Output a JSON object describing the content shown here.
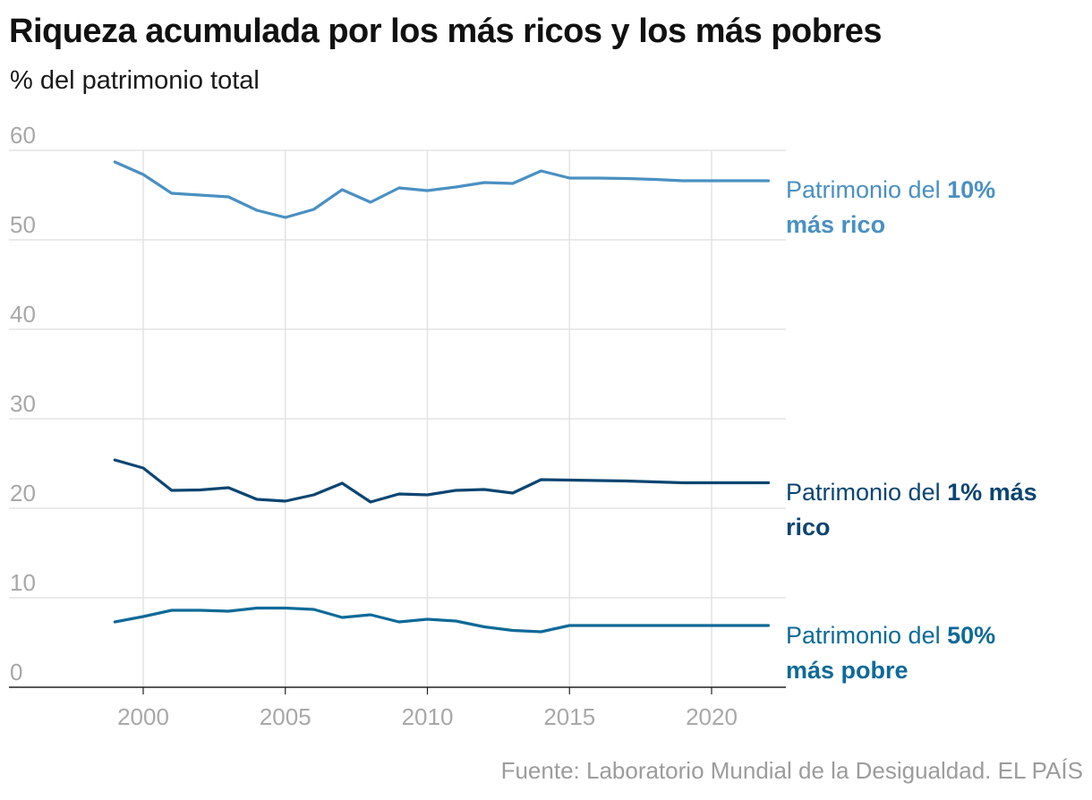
{
  "header": {
    "title": "Riqueza acumulada por los más ricos y los más pobres",
    "subtitle": "% del patrimonio total"
  },
  "footer": {
    "source": "Fuente: Laboratorio Mundial de la Desigualdad. EL PAÍS"
  },
  "labels": {
    "top10": {
      "pre": "Patrimonio del ",
      "bold1": "10%",
      "bold2": "más rico"
    },
    "top1": {
      "pre": "Patrimonio del ",
      "bold1": "1% más",
      "bold2": "rico"
    },
    "bottom50": {
      "pre": "Patrimonio del ",
      "bold1": "50%",
      "bold2": "más pobre"
    }
  },
  "chart_data": {
    "type": "line",
    "title": "Riqueza acumulada por los más ricos y los más pobres",
    "subtitle": "% del patrimonio total",
    "xlabel": "",
    "ylabel": "",
    "xlim": [
      1996,
      2023
    ],
    "ylim": [
      0,
      60
    ],
    "x_ticks": [
      2000,
      2005,
      2010,
      2015,
      2020
    ],
    "y_ticks": [
      0,
      10,
      20,
      30,
      40,
      50,
      60
    ],
    "grid": true,
    "legend": "inline-right",
    "x": [
      1999,
      2000,
      2001,
      2002,
      2003,
      2004,
      2005,
      2006,
      2007,
      2008,
      2009,
      2010,
      2011,
      2012,
      2013,
      2014,
      2015,
      2016,
      2017,
      2018,
      2019,
      2020,
      2021,
      2022
    ],
    "series": [
      {
        "name": "Patrimonio del 10% más rico",
        "color": "#4a90c2",
        "values": [
          58.7,
          57.3,
          55.2,
          55.0,
          54.8,
          53.3,
          52.5,
          53.4,
          55.6,
          54.2,
          55.8,
          55.5,
          55.9,
          56.4,
          56.3,
          57.7,
          56.9,
          56.9,
          56.85,
          56.75,
          56.6,
          56.6,
          56.6,
          56.6
        ]
      },
      {
        "name": "Patrimonio del 1% más rico",
        "color": "#0b4571",
        "values": [
          25.4,
          24.5,
          22.0,
          22.05,
          22.3,
          21.0,
          20.8,
          21.5,
          22.8,
          20.7,
          21.6,
          21.5,
          22.0,
          22.1,
          21.7,
          23.2,
          23.15,
          23.1,
          23.05,
          22.95,
          22.85,
          22.85,
          22.85,
          22.85
        ]
      },
      {
        "name": "Patrimonio del 50% más pobre",
        "color": "#0e6a98",
        "values": [
          7.3,
          7.9,
          8.6,
          8.6,
          8.5,
          8.85,
          8.85,
          8.7,
          7.8,
          8.1,
          7.3,
          7.6,
          7.4,
          6.75,
          6.35,
          6.2,
          6.9,
          6.9,
          6.9,
          6.9,
          6.9,
          6.9,
          6.9,
          6.9
        ]
      }
    ]
  }
}
